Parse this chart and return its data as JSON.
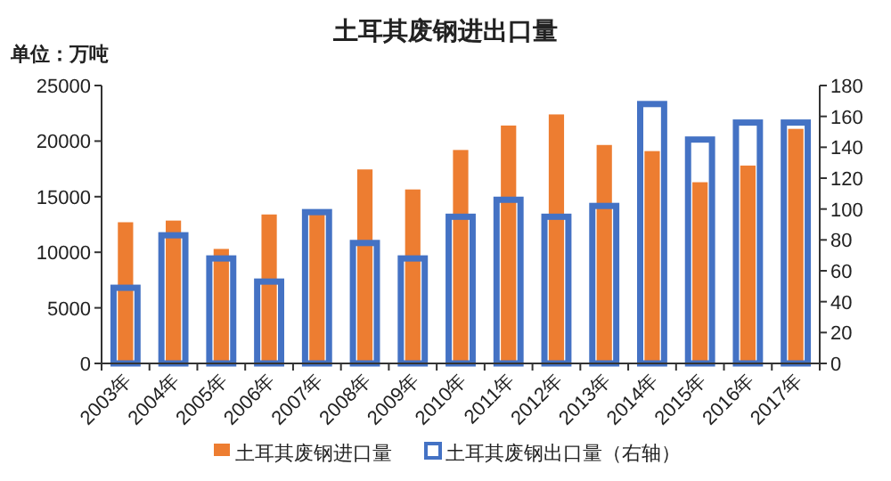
{
  "chart_data": {
    "type": "bar",
    "title": "土耳其废钢进出口量",
    "annotations": [
      "单位：万吨"
    ],
    "categories": [
      "2003年",
      "2004年",
      "2005年",
      "2006年",
      "2007年",
      "2008年",
      "2009年",
      "2010年",
      "2011年",
      "2012年",
      "2013年",
      "2014年",
      "2015年",
      "2016年",
      "2017年"
    ],
    "series": [
      {
        "name": "土耳其废钢进口量",
        "color": "#ed7d31",
        "values": [
          12700,
          12850,
          10300,
          13400,
          13500,
          17450,
          15650,
          19200,
          21400,
          22400,
          19650,
          19100,
          16300,
          17800,
          21100
        ]
      },
      {
        "name": "土耳其废钢出口量（右轴）",
        "color": "#4472c4",
        "axis": "y2",
        "values": [
          49,
          83,
          68,
          53,
          98,
          78,
          68,
          95,
          106,
          95,
          102,
          168,
          145,
          156,
          156
        ]
      }
    ],
    "ylim": [
      0,
      25000
    ],
    "yticks": [
      0,
      5000,
      10000,
      15000,
      20000,
      25000
    ],
    "y2lim": [
      0,
      180
    ],
    "y2ticks": [
      0,
      20,
      40,
      60,
      80,
      100,
      120,
      140,
      160,
      180
    ],
    "legend": "bottom",
    "grid": false
  }
}
